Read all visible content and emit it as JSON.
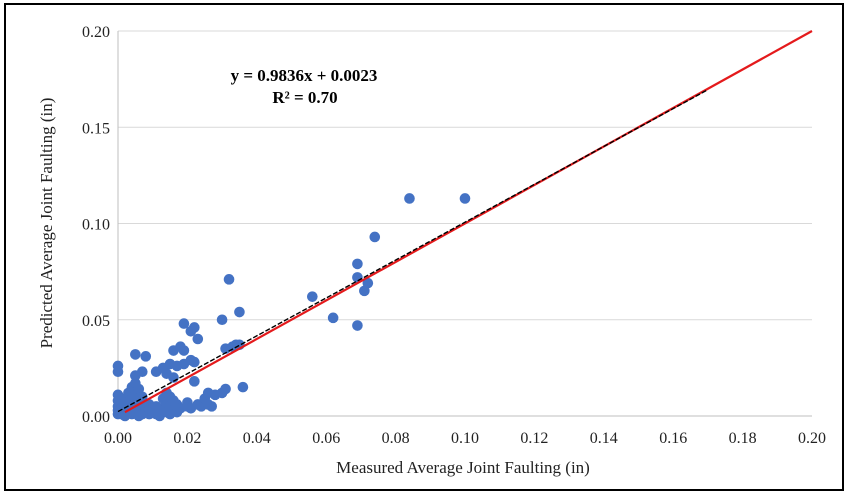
{
  "chart_data": {
    "type": "scatter",
    "xlabel": "Measured Average  Joint Faulting (in)",
    "ylabel": "Predicted Average  Joint Faulting (in)",
    "xlim": [
      0,
      0.2
    ],
    "ylim": [
      0,
      0.2
    ],
    "x_ticks": [
      "0.00",
      "0.02",
      "0.04",
      "0.06",
      "0.08",
      "0.10",
      "0.12",
      "0.14",
      "0.16",
      "0.18",
      "0.20"
    ],
    "y_ticks": [
      "0.00",
      "0.05",
      "0.10",
      "0.15",
      "0.20"
    ],
    "grid": "horizontal",
    "trendline_equation": "y = 0.9836x + 0.0023",
    "r_squared_label": "R² = 0.70",
    "trendline": {
      "slope": 0.9836,
      "intercept": 0.0023,
      "x_range": [
        0,
        0.17
      ],
      "color": "#000000",
      "style": "dashed"
    },
    "equality_line": {
      "x_range": [
        0.002,
        0.2
      ],
      "color": "#e41a1c"
    },
    "marker_color": "#4472c4",
    "points": [
      [
        0.0,
        0.026
      ],
      [
        0.0,
        0.023
      ],
      [
        0.0,
        0.011
      ],
      [
        0.0,
        0.008
      ],
      [
        0.0,
        0.005
      ],
      [
        0.0,
        0.003
      ],
      [
        0.0,
        0.001
      ],
      [
        0.001,
        0.009
      ],
      [
        0.001,
        0.004
      ],
      [
        0.001,
        0.001
      ],
      [
        0.002,
        0.007
      ],
      [
        0.002,
        0.003
      ],
      [
        0.002,
        0.0
      ],
      [
        0.003,
        0.012
      ],
      [
        0.003,
        0.006
      ],
      [
        0.003,
        0.002
      ],
      [
        0.004,
        0.015
      ],
      [
        0.004,
        0.009
      ],
      [
        0.004,
        0.004
      ],
      [
        0.004,
        0.001
      ],
      [
        0.005,
        0.032
      ],
      [
        0.005,
        0.021
      ],
      [
        0.005,
        0.017
      ],
      [
        0.005,
        0.011
      ],
      [
        0.005,
        0.006
      ],
      [
        0.005,
        0.002
      ],
      [
        0.006,
        0.014
      ],
      [
        0.006,
        0.008
      ],
      [
        0.006,
        0.003
      ],
      [
        0.006,
        0.0
      ],
      [
        0.007,
        0.023
      ],
      [
        0.007,
        0.01
      ],
      [
        0.007,
        0.005
      ],
      [
        0.007,
        0.001
      ],
      [
        0.008,
        0.031
      ],
      [
        0.008,
        0.004
      ],
      [
        0.008,
        0.002
      ],
      [
        0.009,
        0.006
      ],
      [
        0.009,
        0.003
      ],
      [
        0.009,
        0.001
      ],
      [
        0.01,
        0.004
      ],
      [
        0.01,
        0.002
      ],
      [
        0.011,
        0.023
      ],
      [
        0.011,
        0.005
      ],
      [
        0.011,
        0.001
      ],
      [
        0.012,
        0.004
      ],
      [
        0.012,
        0.0
      ],
      [
        0.013,
        0.025
      ],
      [
        0.013,
        0.009
      ],
      [
        0.013,
        0.003
      ],
      [
        0.014,
        0.022
      ],
      [
        0.014,
        0.012
      ],
      [
        0.014,
        0.006
      ],
      [
        0.014,
        0.002
      ],
      [
        0.015,
        0.027
      ],
      [
        0.015,
        0.01
      ],
      [
        0.015,
        0.005
      ],
      [
        0.015,
        0.001
      ],
      [
        0.016,
        0.034
      ],
      [
        0.016,
        0.02
      ],
      [
        0.016,
        0.008
      ],
      [
        0.016,
        0.003
      ],
      [
        0.017,
        0.026
      ],
      [
        0.017,
        0.006
      ],
      [
        0.017,
        0.002
      ],
      [
        0.018,
        0.036
      ],
      [
        0.018,
        0.004
      ],
      [
        0.019,
        0.048
      ],
      [
        0.019,
        0.034
      ],
      [
        0.019,
        0.027
      ],
      [
        0.02,
        0.007
      ],
      [
        0.02,
        0.005
      ],
      [
        0.021,
        0.044
      ],
      [
        0.021,
        0.029
      ],
      [
        0.021,
        0.004
      ],
      [
        0.022,
        0.018
      ],
      [
        0.022,
        0.046
      ],
      [
        0.022,
        0.028
      ],
      [
        0.023,
        0.04
      ],
      [
        0.023,
        0.006
      ],
      [
        0.024,
        0.005
      ],
      [
        0.025,
        0.009
      ],
      [
        0.026,
        0.012
      ],
      [
        0.026,
        0.006
      ],
      [
        0.027,
        0.005
      ],
      [
        0.028,
        0.011
      ],
      [
        0.03,
        0.05
      ],
      [
        0.03,
        0.012
      ],
      [
        0.031,
        0.035
      ],
      [
        0.031,
        0.014
      ],
      [
        0.032,
        0.071
      ],
      [
        0.033,
        0.036
      ],
      [
        0.034,
        0.037
      ],
      [
        0.035,
        0.054
      ],
      [
        0.035,
        0.037
      ],
      [
        0.036,
        0.015
      ],
      [
        0.056,
        0.062
      ],
      [
        0.062,
        0.051
      ],
      [
        0.069,
        0.047
      ],
      [
        0.069,
        0.079
      ],
      [
        0.069,
        0.072
      ],
      [
        0.071,
        0.065
      ],
      [
        0.072,
        0.069
      ],
      [
        0.074,
        0.093
      ],
      [
        0.084,
        0.113
      ],
      [
        0.1,
        0.113
      ]
    ]
  }
}
